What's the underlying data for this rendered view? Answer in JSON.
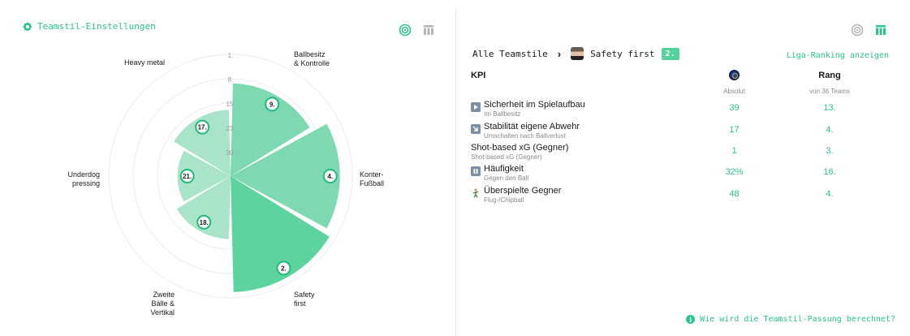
{
  "left": {
    "settings_label": "Teamstil-Einstellungen",
    "radar": {
      "ring_labels": [
        "1.",
        "8.",
        "15.",
        "23.",
        "30."
      ],
      "segments": [
        {
          "name": "Ballbesitz & Kontrolle",
          "label_lines": [
            "Ballbesitz",
            "& Kontrolle"
          ],
          "rank": "9.",
          "rank_num": 9,
          "highlighted": false
        },
        {
          "name": "Konter-Fußball",
          "label_lines": [
            "Konter-",
            "Fußball"
          ],
          "rank": "4.",
          "rank_num": 4,
          "highlighted": false
        },
        {
          "name": "Safety first",
          "label_lines": [
            "Safety",
            "first"
          ],
          "rank": "2.",
          "rank_num": 2,
          "highlighted": true
        },
        {
          "name": "Zweite Bälle & Vertikal",
          "label_lines": [
            "Zweite",
            "Bälle &",
            "Vertikal"
          ],
          "rank": "18.",
          "rank_num": 18,
          "highlighted": false
        },
        {
          "name": "Underdog pressing",
          "label_lines": [
            "Underdog",
            "pressing"
          ],
          "rank": "21.",
          "rank_num": 21,
          "highlighted": false
        },
        {
          "name": "Heavy metal",
          "label_lines": [
            "Heavy metal"
          ],
          "rank": "17.",
          "rank_num": 17,
          "highlighted": false
        }
      ]
    }
  },
  "right": {
    "breadcrumb": {
      "root": "Alle Teamstile",
      "current": "Safety first",
      "rank": "2."
    },
    "liga_link": "Liga-Ranking anzeigen",
    "headers": {
      "kpi": "KPI",
      "rang": "Rang",
      "absolut": "Absolut",
      "von_teams": "von 36 Teams"
    },
    "kpis": [
      {
        "name": "Sicherheit im Spielaufbau",
        "sub": "Im Ballbesitz",
        "absolut": "39",
        "rang": "13.",
        "icon": "play-icon"
      },
      {
        "name": "Stabilität eigene Abwehr",
        "sub": "Umschalten nach Ballverlust",
        "absolut": "17",
        "rang": "4.",
        "icon": "transition-icon"
      },
      {
        "name": "Shot-based xG (Gegner)",
        "sub": "Shot-based xG (Gegner)",
        "absolut": "1",
        "rang": "3.",
        "icon": ""
      },
      {
        "name": "Häufigkeit",
        "sub": "Gegen den Ball",
        "absolut": "32%",
        "rang": "16.",
        "icon": "pause-icon"
      },
      {
        "name": "Überspielte Gegner",
        "sub": "Flug-/Chipball",
        "absolut": "48",
        "rang": "4.",
        "icon": "player-icon"
      }
    ],
    "help_link": "Wie wird die Teamstil-Passung berechnet?"
  },
  "colors": {
    "accent": "#2bc48a",
    "segment_highlight": "#5dd39e",
    "segment_mid": "#7ed9b0",
    "segment_light": "#a9e4c8"
  }
}
